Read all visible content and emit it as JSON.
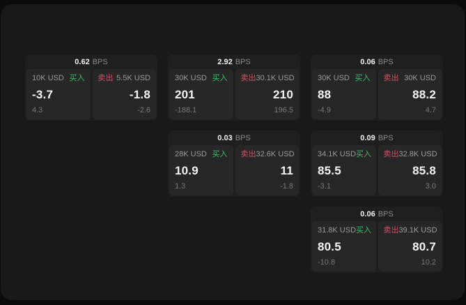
{
  "labels": {
    "bps_unit": "BPS",
    "buy": "买入",
    "sell": "卖出"
  },
  "colors": {
    "background": "#0b0b0b",
    "panel": "#191919",
    "card": "#1f1f1f",
    "subpanel": "#272727",
    "buy_green": "#3cbe6e",
    "sell_red": "#d25064"
  },
  "cards": [
    {
      "bps": "0.62",
      "col": 1,
      "row": 1,
      "buy": {
        "notional": "10K USD",
        "price": "-3.7",
        "delta": "4.3"
      },
      "sell": {
        "notional": "5.5K USD",
        "price": "-1.8",
        "delta": "-2.6"
      }
    },
    {
      "bps": "2.92",
      "col": 2,
      "row": 1,
      "buy": {
        "notional": "30K USD",
        "price": "201",
        "delta": "-188.1"
      },
      "sell": {
        "notional": "30.1K USD",
        "price": "210",
        "delta": "196.5"
      }
    },
    {
      "bps": "0.06",
      "col": 3,
      "row": 1,
      "buy": {
        "notional": "30K USD",
        "price": "88",
        "delta": "-4.9"
      },
      "sell": {
        "notional": "30K USD",
        "price": "88.2",
        "delta": "4.7"
      }
    },
    {
      "bps": "0.03",
      "col": 2,
      "row": 2,
      "buy": {
        "notional": "28K USD",
        "price": "10.9",
        "delta": "1.3"
      },
      "sell": {
        "notional": "32.6K USD",
        "price": "11",
        "delta": "-1.8"
      }
    },
    {
      "bps": "0.09",
      "col": 3,
      "row": 2,
      "buy": {
        "notional": "34.1K USD",
        "price": "85.5",
        "delta": "-3.1"
      },
      "sell": {
        "notional": "32.8K USD",
        "price": "85.8",
        "delta": "3.0"
      }
    },
    {
      "bps": "0.06",
      "col": 3,
      "row": 3,
      "buy": {
        "notional": "31.8K USD",
        "price": "80.5",
        "delta": "-10.8"
      },
      "sell": {
        "notional": "39.1K USD",
        "price": "80.7",
        "delta": "10.2"
      }
    }
  ]
}
